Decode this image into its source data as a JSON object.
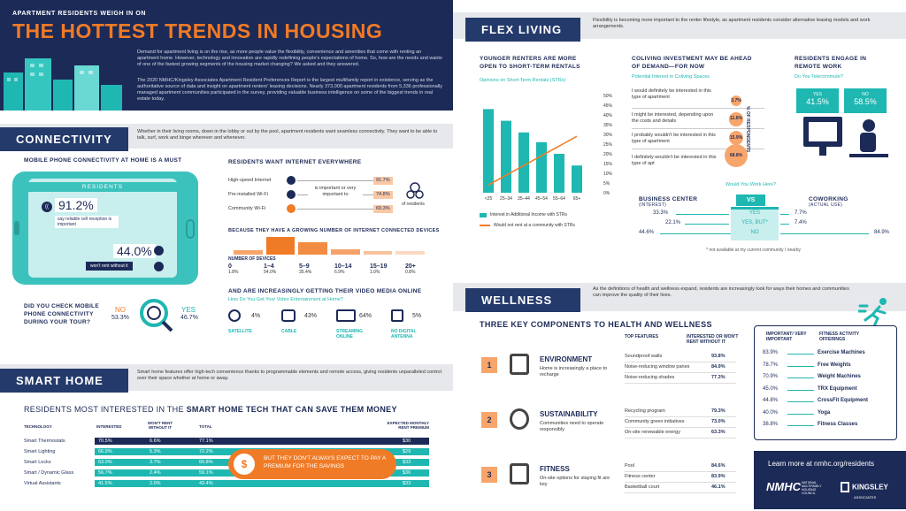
{
  "hero": {
    "kicker": "APARTMENT RESIDENTS WEIGH IN ON",
    "title": "THE HOTTEST TRENDS IN HOUSING",
    "p1": "Demand for apartment living is on the rise, as more people value the flexibility, convenience and amenities that come with renting an apartment home. However, technology and innovation are rapidly redefining people's expectations of home. So, how are the needs and wants of one of the fastest growing segments of the housing market changing? We asked and they answered.",
    "p2": "The 2020 NMHC/Kingsley Associates Apartment Resident Preferences Report is the largest multifamily report in existence, serving as the authoritative source of data and insight on apartment renters' leasing decisions. Nearly 373,000 apartment residents from 5,336 professionally managed apartment communities participated in the survey, providing valuable business intelligence on some of the biggest trends in real estate today."
  },
  "connectivity": {
    "header": "CONNECTIVITY",
    "intro": "Whether in their living rooms, down in the lobby or out by the pool, apartment residents want seamless connectivity. They want to be able to talk, surf, work and binge wherever and whenever.",
    "mobile_title": "MOBILE PHONE CONNECTIVITY AT HOME IS A MUST",
    "phone_label": "RESIDENTS",
    "stat1": "91.2%",
    "stat1_text": "say reliable cell reception is important",
    "stat2": "44.0%",
    "stat2_text": "won't rent without it",
    "tour_q": "DID YOU CHECK MOBILE PHONE CONNECTIVITY DURING YOUR TOUR?",
    "no_label": "NO",
    "no_val": "53.3%",
    "yes_label": "YES",
    "yes_val": "46.7%",
    "internet_title": "RESIDENTS WANT INTERNET EVERYWHERE",
    "internet_items": [
      {
        "label": "High-speed Internet",
        "val": "91.7%"
      },
      {
        "label": "Pre-installed Wi-Fi",
        "val": "74.8%"
      },
      {
        "label": "Community Wi-Fi",
        "val": "69.3%"
      }
    ],
    "internet_mid": "is important or very important to",
    "internet_res": "of residents",
    "devices_title": "BECAUSE THEY HAVE A GROWING NUMBER OF INTERNET CONNECTED DEVICES",
    "devices_axis": "NUMBER OF DEVICES",
    "devices": [
      {
        "range": "0",
        "pct": "1.8%",
        "v": 1.8
      },
      {
        "range": "1–4",
        "pct": "54.0%",
        "v": 54.0
      },
      {
        "range": "5–9",
        "pct": "35.4%",
        "v": 35.4
      },
      {
        "range": "10–14",
        "pct": "6.9%",
        "v": 6.9
      },
      {
        "range": "15–19",
        "pct": "1.0%",
        "v": 1.0
      },
      {
        "range": "20+",
        "pct": "0.8%",
        "v": 0.8
      }
    ],
    "video_title": "AND ARE INCREASINGLY GETTING THEIR VIDEO MEDIA ONLINE",
    "video_sub": "How Do You Get Your Video Entertainment at Home?",
    "video": [
      {
        "label": "SATELLITE",
        "val": "4%"
      },
      {
        "label": "CABLE",
        "val": "43%"
      },
      {
        "label": "STREAMING ONLINE",
        "val": "64%"
      },
      {
        "label": "NO DIGITAL ANTENNA",
        "val": "5%"
      }
    ]
  },
  "smart": {
    "header": "SMART HOME",
    "intro": "Smart home features offer high-tech convenience thanks to programmable elements and remote access, giving residents unparalleled control over their space whether at home or away.",
    "title_a": "RESIDENTS MOST INTERESTED IN THE ",
    "title_b": "SMART HOME TECH THAT CAN SAVE THEM MONEY",
    "cols": [
      "TECHNOLOGY",
      "INTERESTED",
      "WON'T RENT WITHOUT IT",
      "TOTAL",
      "EXPECTED MONTHLY RENT PREMIUM"
    ],
    "rows": [
      {
        "tech": "Smart Thermostats",
        "int": "70.5%",
        "wont": "6.6%",
        "total": "77.1%",
        "prem": "$30",
        "t": 77.1
      },
      {
        "tech": "Smart Lighting",
        "int": "66.9%",
        "wont": "5.3%",
        "total": "72.2%",
        "prem": "$29",
        "t": 72.2
      },
      {
        "tech": "Smart Locks",
        "int": "63.0%",
        "wont": "3.7%",
        "total": "66.8%",
        "prem": "$33",
        "t": 66.8
      },
      {
        "tech": "Smart / Dynamic Glass",
        "int": "56.7%",
        "wont": "2.4%",
        "total": "59.1%",
        "prem": "$36",
        "t": 59.1
      },
      {
        "tech": "Virtual Assistants",
        "int": "41.5%",
        "wont": "2.0%",
        "total": "43.4%",
        "prem": "$33",
        "t": 43.4
      }
    ],
    "callout": "BUT THEY DON'T ALWAYS EXPECT TO PAY A PREMIUM FOR THE SAVINGS"
  },
  "flex": {
    "header": "FLEX LIVING",
    "intro": "Flexibility is becoming more important to the renter lifestyle, as apartment residents consider alternative leasing models and work arrangements.",
    "str_title": "YOUNGER RENTERS ARE MORE OPEN TO SHORT-TERM RENTALS",
    "str_sub": "Opinions on Short-Term Rentals (STRs)",
    "str_legend_bar": "Interest in Additional Income with STRs",
    "str_legend_line": "Would not rent at a community with STRs",
    "cowork_title": "COLIVING INVESTMENT MAY BE AHEAD OF DEMAND—FOR NOW",
    "cowork_sub": "Potential Interest in Coliving Spaces",
    "cowork_axis": "% OF RESPONDENTS",
    "coliving": [
      {
        "text": "I would definitely be interested in this type of apartment",
        "val": "3.7%",
        "v": 3.7
      },
      {
        "text": "I might be interested, depending upon the costs and details",
        "val": "11.6%",
        "v": 11.6
      },
      {
        "text": "I probably wouldn't be interested in this type of apartment",
        "val": "15.9%",
        "v": 15.9
      },
      {
        "text": "I definitely wouldn't be interested in this type of apt",
        "val": "68.8%",
        "v": 68.8
      }
    ],
    "remote_title": "RESIDENTS ENGAGE IN REMOTE WORK",
    "remote_sub": "Do You Telecommute?",
    "yes_label": "YES",
    "yes_val": "41.5%",
    "no_label": "NO",
    "no_val": "58.5%",
    "work_q": "Would You Work Here?",
    "bc": "BUSINESS CENTER",
    "bc_sub": "(INTEREST)",
    "vs": "VS",
    "cw": "COWORKING",
    "cw_sub": "(ACTUAL USE)",
    "work_rows": [
      {
        "left": "33.3%",
        "mid": "YES",
        "right": "7.7%"
      },
      {
        "left": "22.1%",
        "mid": "YES, BUT*",
        "right": "7.4%"
      },
      {
        "left": "44.6%",
        "mid": "NO",
        "right": "84.9%"
      }
    ],
    "footnote": "* not available at my current community / nearby"
  },
  "wellness": {
    "header": "WELLNESS",
    "intro": "As the definitions of health and wellness expand, residents are increasingly look for ways their homes and communities can improve the quality of their lives.",
    "title": "THREE KEY COMPONENTS TO HEALTH AND WELLNESS",
    "col1": "TOP FEATURES",
    "col2": "INTERESTED OR WON'T RENT WITHOUT IT",
    "components": [
      {
        "n": "1",
        "name": "ENVIRONMENT",
        "desc": "Home is increasingly a place to recharge",
        "features": [
          {
            "f": "Soundproof walls",
            "v": "93.8%"
          },
          {
            "f": "Noise-reducing window panes",
            "v": "84.9%"
          },
          {
            "f": "Noise-reducing shades",
            "v": "77.3%"
          }
        ]
      },
      {
        "n": "2",
        "name": "SUSTAINABILITY",
        "desc": "Communities need to operate responsibly",
        "features": [
          {
            "f": "Recycling program",
            "v": "79.3%"
          },
          {
            "f": "Community green initiatives",
            "v": "73.0%"
          },
          {
            "f": "On-site renewable energy",
            "v": "63.3%"
          }
        ]
      },
      {
        "n": "3",
        "name": "FITNESS",
        "desc": "On-site options for staying fit are key",
        "features": [
          {
            "f": "Pool",
            "v": "84.6%"
          },
          {
            "f": "Fitness center",
            "v": "83.9%"
          },
          {
            "f": "Basketball court",
            "v": "46.1%"
          }
        ]
      }
    ],
    "fit_col1": "IMPORTANT/ VERY IMPORTANT",
    "fit_col2": "FITNESS ACTIVITY OFFERINGS",
    "fitness": [
      {
        "v": "83.9%",
        "n": "Exercise Machines"
      },
      {
        "v": "78.7%",
        "n": "Free Weights"
      },
      {
        "v": "70.9%",
        "n": "Weight Machines"
      },
      {
        "v": "45.0%",
        "n": "TRX Equipment"
      },
      {
        "v": "44.8%",
        "n": "CrossFit Equipment"
      },
      {
        "v": "40.0%",
        "n": "Yoga"
      },
      {
        "v": "38.8%",
        "n": "Fitness Classes"
      }
    ]
  },
  "footer": {
    "learn": "Learn more at nmhc.org/residents",
    "nmhc": "NMHC",
    "nmhc_sub": "NATIONAL MULTIFAMILY HOUSING COUNCIL",
    "kingsley": "KINGSLEY",
    "kingsley_sub": "ASSOCIATES"
  },
  "chart_data": {
    "type": "bar",
    "categories": [
      "<25",
      "25–34",
      "35–44",
      "45–54",
      "55–64",
      "65+"
    ],
    "ylim": [
      0,
      50
    ],
    "yticks": [
      "50%",
      "45%",
      "40%",
      "35%",
      "30%",
      "25%",
      "20%",
      "15%",
      "10%",
      "5%",
      "0%"
    ],
    "series": [
      {
        "name": "Interest in Additional Income with STRs",
        "type": "bar",
        "values": [
          43,
          37,
          31,
          26,
          20,
          14
        ]
      },
      {
        "name": "Would not rent at a community with STRs",
        "type": "line",
        "values": [
          4,
          9,
          14,
          19,
          24,
          29
        ]
      }
    ]
  },
  "colors": {
    "navy": "#1c2a57",
    "teal": "#1fb7b1",
    "orange": "#f07b26"
  }
}
